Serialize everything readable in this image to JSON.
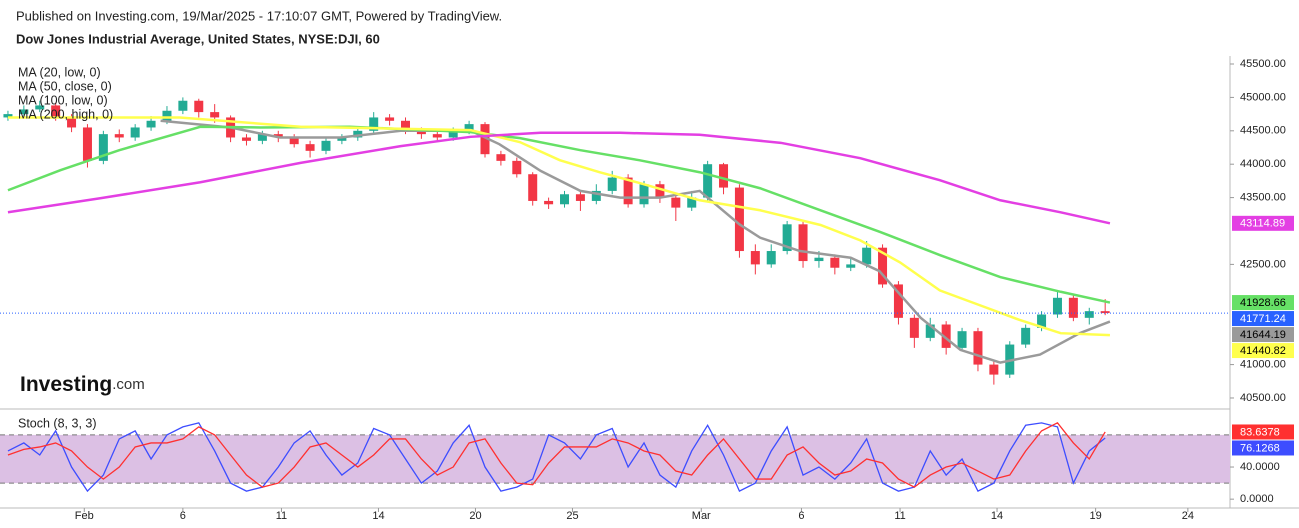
{
  "header": {
    "published": "Published on Investing.com, 19/Mar/2025 - 17:10:07 GMT, Powered by TradingView.",
    "title": "Dow Jones Industrial Average, United States, NYSE:DJI, 60"
  },
  "logo": {
    "brand": "Investing",
    "suffix": ".com"
  },
  "chart_data": [
    {
      "type": "candlestick",
      "up_color": "#22ab94",
      "down_color": "#f23645",
      "last_price_color": "#2962ff",
      "x": [
        0,
        1,
        2,
        3,
        4,
        5,
        6,
        7,
        8,
        9,
        10,
        11,
        12,
        13,
        14,
        15,
        16,
        17,
        18,
        19,
        20,
        21,
        22,
        23,
        24,
        25,
        26,
        27,
        28,
        29,
        30,
        31,
        32,
        33,
        34,
        35,
        36,
        37,
        38,
        39,
        40,
        41,
        42,
        43,
        44,
        45,
        46,
        47,
        48,
        49,
        50,
        51,
        52,
        53,
        54,
        55,
        56,
        57,
        58,
        59,
        60,
        61,
        62,
        63,
        64,
        65,
        66,
        67,
        68,
        69
      ],
      "open": [
        44700,
        44750,
        44820,
        44880,
        44700,
        44550,
        44050,
        44450,
        44400,
        44550,
        44650,
        44800,
        44950,
        44780,
        44700,
        44400,
        44350,
        44450,
        44400,
        44300,
        44200,
        44350,
        44400,
        44500,
        44700,
        44650,
        44500,
        44450,
        44400,
        44500,
        44600,
        44150,
        44050,
        43850,
        43450,
        43400,
        43550,
        43450,
        43600,
        43800,
        43400,
        43700,
        43500,
        43350,
        43500,
        44000,
        43650,
        42700,
        42500,
        42700,
        43100,
        42550,
        42600,
        42450,
        42500,
        42750,
        42200,
        41700,
        41400,
        41600,
        41250,
        41500,
        41000,
        40850,
        41300,
        41550,
        41750,
        42000,
        41700,
        41800
      ],
      "high": [
        44800,
        44880,
        44950,
        44920,
        44750,
        44600,
        44500,
        44520,
        44600,
        44720,
        44870,
        45000,
        44980,
        44900,
        44730,
        44450,
        44500,
        44500,
        44450,
        44350,
        44400,
        44450,
        44550,
        44780,
        44750,
        44700,
        44550,
        44500,
        44550,
        44650,
        44630,
        44200,
        44100,
        43880,
        43500,
        43600,
        43600,
        43700,
        43900,
        43850,
        43750,
        43750,
        43550,
        43600,
        44050,
        44020,
        43700,
        42800,
        42800,
        43150,
        43150,
        42700,
        42650,
        42600,
        42850,
        42800,
        42250,
        41750,
        41700,
        41650,
        41550,
        41550,
        41050,
        41350,
        41600,
        41800,
        42100,
        42050,
        41850,
        41980
      ],
      "low": [
        44650,
        44700,
        44780,
        44650,
        44480,
        43950,
        44000,
        44330,
        44350,
        44500,
        44600,
        44750,
        44700,
        44620,
        44330,
        44280,
        44300,
        44330,
        44250,
        44100,
        44150,
        44300,
        44350,
        44450,
        44580,
        44450,
        44380,
        44350,
        44350,
        44450,
        44100,
        43980,
        43800,
        43380,
        43330,
        43350,
        43300,
        43400,
        43550,
        43350,
        43350,
        43420,
        43150,
        43300,
        43450,
        43550,
        42600,
        42350,
        42450,
        42650,
        42450,
        42450,
        42350,
        42400,
        42450,
        42150,
        41600,
        41250,
        41350,
        41150,
        41200,
        40900,
        40700,
        40800,
        41250,
        41500,
        41700,
        41650,
        41600,
        41740
      ],
      "close": [
        44750,
        44820,
        44880,
        44700,
        44550,
        44050,
        44450,
        44400,
        44550,
        44650,
        44800,
        44950,
        44780,
        44700,
        44400,
        44350,
        44450,
        44400,
        44300,
        44200,
        44350,
        44400,
        44500,
        44700,
        44650,
        44500,
        44450,
        44400,
        44500,
        44600,
        44150,
        44050,
        43850,
        43450,
        43400,
        43550,
        43450,
        43600,
        43800,
        43400,
        43700,
        43500,
        43350,
        43500,
        44000,
        43650,
        42700,
        42500,
        42700,
        43100,
        42550,
        42600,
        42450,
        42500,
        42750,
        42200,
        41700,
        41400,
        41600,
        41250,
        41500,
        41000,
        40850,
        41300,
        41550,
        41750,
        42000,
        41700,
        41800,
        41771.24
      ],
      "xlim": [
        -0.5,
        76.85
      ],
      "ylim": [
        40350,
        45560
      ],
      "yticks": [
        {
          "value": 45500,
          "label": "45500.00"
        },
        {
          "value": 45000,
          "label": "45000.00"
        },
        {
          "value": 44500,
          "label": "44500.00"
        },
        {
          "value": 44000,
          "label": "44000.00"
        },
        {
          "value": 43500,
          "label": "43500.00"
        },
        {
          "value": 42500,
          "label": "42500.00"
        },
        {
          "value": 41000,
          "label": "41000.00"
        },
        {
          "value": 40500,
          "label": "40500.00"
        }
      ],
      "xticks": [
        {
          "value": 4.8,
          "label": "Feb"
        },
        {
          "value": 11,
          "label": "6"
        },
        {
          "value": 17.2,
          "label": "11"
        },
        {
          "value": 23.3,
          "label": "14"
        },
        {
          "value": 29.4,
          "label": "20"
        },
        {
          "value": 35.5,
          "label": "25"
        },
        {
          "value": 43.6,
          "label": "Mar"
        },
        {
          "value": 49.9,
          "label": "6"
        },
        {
          "value": 56.1,
          "label": "11"
        },
        {
          "value": 62.2,
          "label": "14"
        },
        {
          "value": 68.4,
          "label": "19"
        },
        {
          "value": 74.2,
          "label": "24"
        }
      ],
      "series": [
        {
          "name": "MA (20, low, 0)",
          "color": "#9a9a9a",
          "label_text_color": "#000000",
          "x": [
            9.6,
            14,
            17.1,
            20.9,
            24.7,
            29.1,
            30.9,
            33.5,
            36,
            38.5,
            41,
            43.5,
            46,
            47.3,
            49.8,
            53,
            54.8,
            57.4,
            59.9,
            62.4,
            64.9,
            67.4,
            69.3
          ],
          "values": [
            44650,
            44550,
            44400,
            44400,
            44500,
            44500,
            44300,
            43900,
            43600,
            43500,
            43500,
            43600,
            43100,
            42900,
            42700,
            42600,
            42400,
            41700,
            41220,
            41030,
            41150,
            41470,
            41644.19
          ]
        },
        {
          "name": "MA (50, close, 0)",
          "color": "#66e066",
          "label_text_color": "#000000",
          "x": [
            0,
            3.3,
            7,
            12.1,
            15.9,
            21.5,
            29.1,
            32.2,
            36,
            39.7,
            43.5,
            47.3,
            51.1,
            54.8,
            58.6,
            62.4,
            66.2,
            69.3
          ],
          "values": [
            43610,
            43910,
            44210,
            44560,
            44550,
            44560,
            44480,
            44390,
            44210,
            44060,
            43880,
            43640,
            43310,
            42990,
            42640,
            42310,
            42090,
            41928.66
          ]
        },
        {
          "name": "MA (100, low, 0)",
          "color": "#ffff4d",
          "label_text_color": "#000000",
          "x": [
            0,
            10.8,
            18.4,
            29.1,
            32.2,
            34.7,
            37.2,
            39.7,
            43.5,
            47.3,
            51.1,
            53.6,
            56.1,
            58.6,
            61.1,
            63.6,
            66.2,
            69.3
          ],
          "values": [
            44700,
            44700,
            44560,
            44510,
            44330,
            44060,
            43880,
            43720,
            43460,
            43310,
            43090,
            42860,
            42530,
            42110,
            41890,
            41670,
            41470,
            41440.82
          ]
        },
        {
          "name": "MA (200, high, 0)",
          "color": "#e33fe3",
          "label_text_color": "#ffffff",
          "x": [
            0,
            5.8,
            12.1,
            18.4,
            24.7,
            29.1,
            33.5,
            38.5,
            43.5,
            48.6,
            53.6,
            58.6,
            62.4,
            66.2,
            69.3
          ],
          "values": [
            43280,
            43490,
            43730,
            44020,
            44270,
            44410,
            44470,
            44470,
            44440,
            44320,
            44090,
            43760,
            43460,
            43280,
            43114.89
          ]
        }
      ]
    },
    {
      "type": "line",
      "title": "Stoch (8, 3, 3)",
      "band": [
        20,
        80
      ],
      "band_color": "#dcc0e4",
      "xlim": [
        -0.5,
        76.85
      ],
      "ylim": [
        -11,
        111
      ],
      "yticks": [
        {
          "value": 0,
          "label": "0.0000"
        },
        {
          "value": 40,
          "label": "40.0000"
        }
      ],
      "x": [
        0,
        1,
        2,
        3,
        4,
        5,
        6,
        7,
        8,
        9,
        10,
        11,
        12,
        13,
        14,
        15,
        16,
        17,
        18,
        19,
        20,
        21,
        22,
        23,
        24,
        25,
        26,
        27,
        28,
        29,
        30,
        31,
        32,
        33,
        34,
        35,
        36,
        37,
        38,
        39,
        40,
        41,
        42,
        43,
        44,
        45,
        46,
        47,
        48,
        49,
        50,
        51,
        52,
        53,
        54,
        55,
        56,
        57,
        58,
        59,
        60,
        61,
        62,
        63,
        64,
        65,
        66,
        67,
        68,
        69
      ],
      "series": [
        {
          "color": "#3d4dff",
          "values": [
            60,
            70,
            55,
            85,
            40,
            10,
            30,
            75,
            85,
            50,
            80,
            90,
            95,
            60,
            20,
            10,
            15,
            40,
            70,
            85,
            55,
            30,
            45,
            88,
            80,
            50,
            20,
            35,
            70,
            92,
            40,
            10,
            15,
            25,
            80,
            70,
            50,
            80,
            88,
            40,
            70,
            30,
            15,
            60,
            92,
            55,
            10,
            20,
            60,
            90,
            30,
            40,
            25,
            45,
            75,
            20,
            10,
            15,
            60,
            30,
            50,
            10,
            20,
            60,
            92,
            95,
            90,
            20,
            60,
            76.1268
          ]
        },
        {
          "color": "#ff3030",
          "values": [
            55,
            62,
            65,
            70,
            60,
            40,
            25,
            40,
            65,
            70,
            70,
            75,
            90,
            80,
            55,
            30,
            15,
            20,
            40,
            65,
            70,
            55,
            40,
            55,
            75,
            75,
            50,
            30,
            40,
            70,
            75,
            45,
            20,
            18,
            45,
            65,
            65,
            65,
            75,
            70,
            60,
            55,
            35,
            30,
            55,
            75,
            50,
            25,
            25,
            55,
            65,
            45,
            30,
            35,
            50,
            45,
            25,
            15,
            30,
            40,
            45,
            35,
            25,
            30,
            60,
            85,
            95,
            70,
            50,
            83.6378
          ]
        }
      ]
    }
  ]
}
